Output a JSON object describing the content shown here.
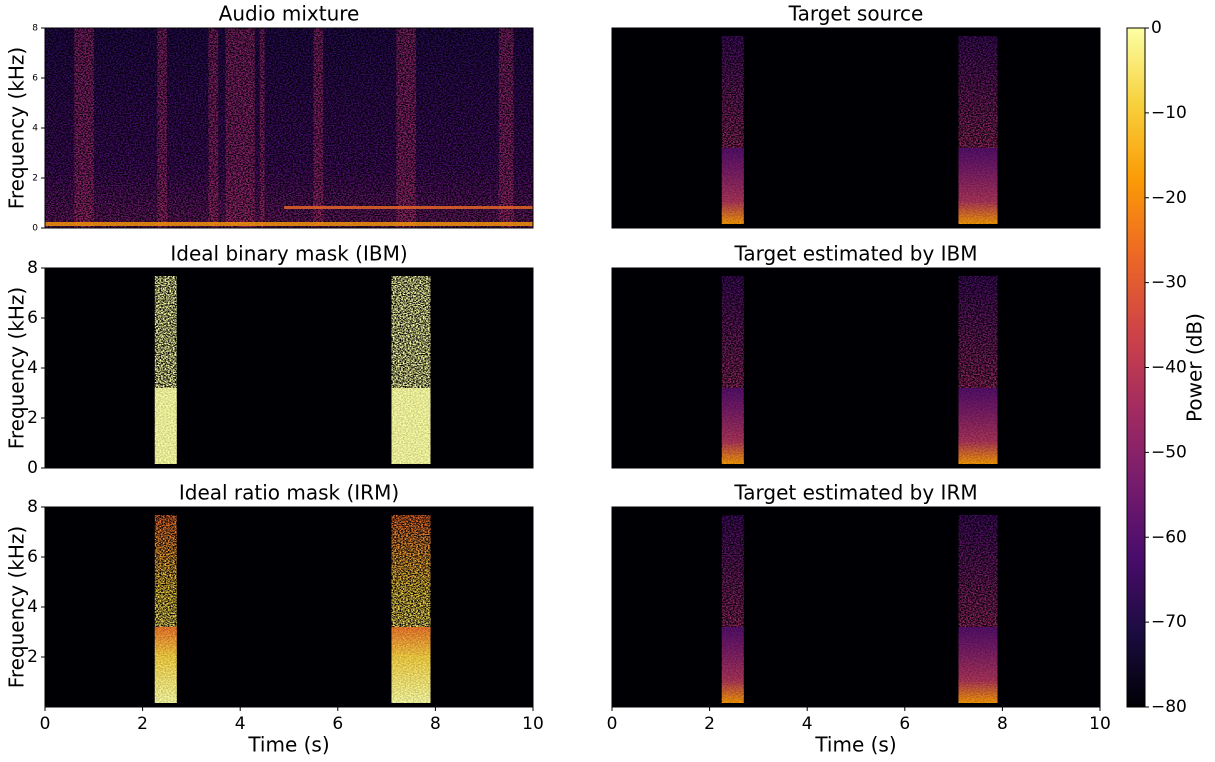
{
  "chart_data": [
    {
      "type": "spectrogram",
      "title": "Audio mixture",
      "ylabel": "Frequency (kHz)",
      "xlim": [
        0,
        10
      ],
      "ylim": [
        0,
        8
      ],
      "yticks": [
        0,
        2,
        4,
        6,
        8
      ]
    },
    {
      "type": "spectrogram",
      "title": "Target source",
      "xlim": [
        0,
        10
      ],
      "ylim": [
        0,
        8
      ]
    },
    {
      "type": "spectrogram",
      "title": "Ideal binary mask (IBM)",
      "ylabel": "Frequency (kHz)",
      "xlim": [
        0,
        10
      ],
      "ylim": [
        0,
        8
      ],
      "yticks": [
        0,
        2,
        4,
        6,
        8
      ]
    },
    {
      "type": "spectrogram",
      "title": "Target estimated by IBM",
      "xlim": [
        0,
        10
      ],
      "ylim": [
        0,
        8
      ]
    },
    {
      "type": "spectrogram",
      "title": "Ideal ratio mask (IRM)",
      "ylabel": "Frequency (kHz)",
      "xlabel": "Time (s)",
      "xlim": [
        0,
        10
      ],
      "ylim": [
        0,
        8
      ],
      "xticks": [
        0,
        2,
        4,
        6,
        8,
        10
      ],
      "yticks": [
        2,
        4,
        6,
        8
      ]
    },
    {
      "type": "spectrogram",
      "title": "Target estimated by IRM",
      "xlabel": "Time (s)",
      "xlim": [
        0,
        10
      ],
      "ylim": [
        0,
        8
      ],
      "xticks": [
        0,
        2,
        4,
        6,
        8,
        10
      ]
    }
  ],
  "colorbar": {
    "label": "Power (dB)",
    "ylim": [
      -80,
      0
    ],
    "yticks": [
      0,
      {
        "value": -10,
        "label": "−10"
      },
      {
        "value": -20,
        "label": "−20"
      },
      {
        "value": -30,
        "label": "−30"
      },
      {
        "value": -40,
        "label": "−40"
      },
      {
        "value": -50,
        "label": "−50"
      },
      {
        "value": -60,
        "label": "−60"
      },
      {
        "value": -70,
        "label": "−70"
      },
      {
        "value": -80,
        "label": "−80"
      }
    ],
    "colormap": [
      "#000004",
      "#1b0c41",
      "#4a0c6b",
      "#781c6d",
      "#a52c60",
      "#cf4446",
      "#ed6925",
      "#fb9b06",
      "#f7d13d",
      "#fcffa4"
    ]
  }
}
